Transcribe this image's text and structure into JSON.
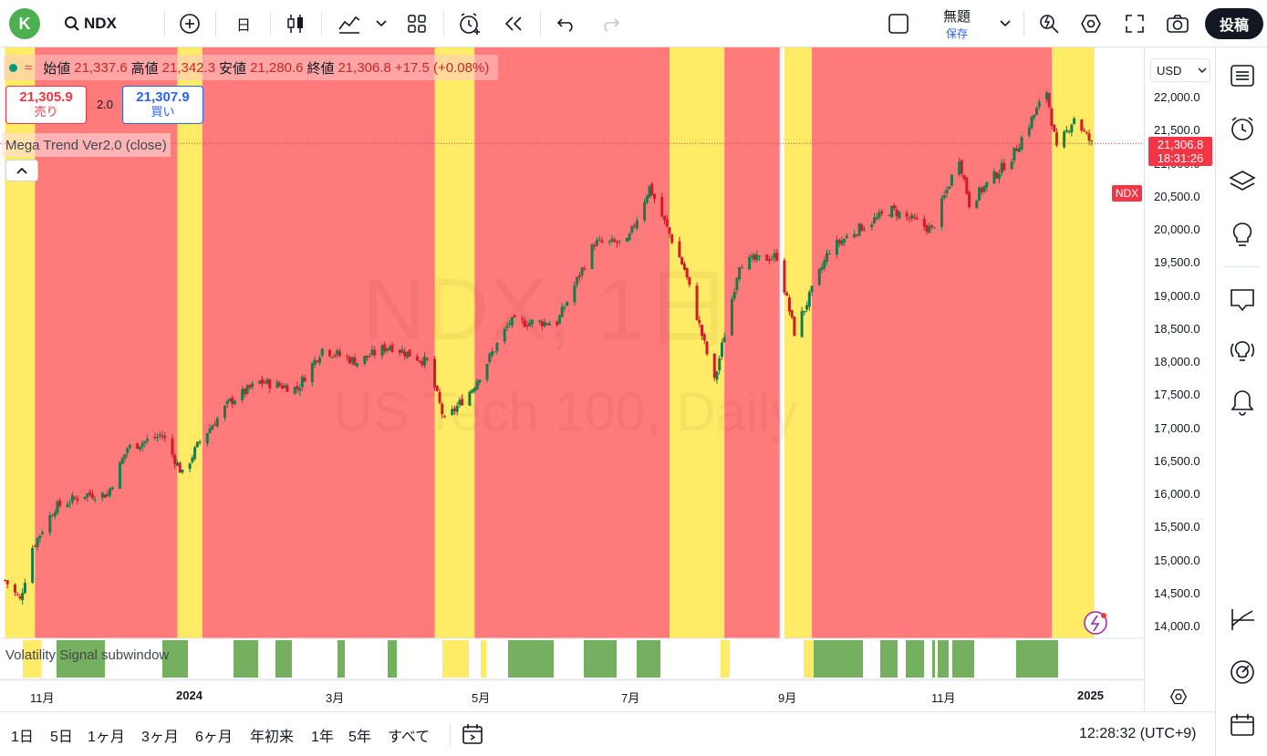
{
  "toolbar": {
    "avatar_letter": "K",
    "symbol": "NDX",
    "interval": "日",
    "save_title": "無題",
    "save_sub": "保存",
    "post": "投稿"
  },
  "legend": {
    "open_label": "始値",
    "open": "21,337.6",
    "high_label": "高値",
    "high": "21,342.3",
    "low_label": "安値",
    "low": "21,280.6",
    "close_label": "終値",
    "close": "21,306.8",
    "change": "+17.5 (+0.08%)"
  },
  "trade": {
    "sell_price": "21,305.9",
    "sell_label": "売り",
    "spread": "2.0",
    "buy_price": "21,307.9",
    "buy_label": "買い"
  },
  "indicator": "Mega Trend Ver2.0 (close)",
  "subwindow": "Volatility Signal subwindow",
  "watermark": {
    "line1": "NDX, 1日",
    "line2": "US Tech 100, Daily"
  },
  "price_scale": {
    "currency": "USD",
    "ticks": [
      "22,000.0",
      "21,500.0",
      "21,000.0",
      "20,500.0",
      "20,000.0",
      "19,500.0",
      "19,000.0",
      "18,500.0",
      "18,000.0",
      "17,500.0",
      "17,000.0",
      "16,500.0",
      "16,000.0",
      "15,500.0",
      "15,000.0",
      "14,500.0",
      "14,000.0"
    ],
    "last_price": "21,306.8",
    "countdown": "18:31:26",
    "symbol_tag": "NDX"
  },
  "time_scale": [
    "11月",
    "2024",
    "3月",
    "5月",
    "7月",
    "9月",
    "11月",
    "2025"
  ],
  "ranges": [
    "1日",
    "5日",
    "1ヶ月",
    "3ヶ月",
    "6ヶ月",
    "年初来",
    "1年",
    "5年",
    "すべて"
  ],
  "clock": "12:28:32 (UTC+9)",
  "colors": {
    "bull": "#26a69a",
    "bear": "#ef5350",
    "red_zone": "#ff7b7b",
    "yellow_zone": "#ffeb66",
    "signal": "#74b05f"
  },
  "chart_data": {
    "type": "candlestick",
    "symbol": "NDX",
    "ylim": [
      13900,
      22200
    ],
    "ytick_step": 500,
    "x_labels": [
      "11月",
      "2024",
      "3月",
      "5月",
      "7月",
      "9月",
      "11月",
      "2025"
    ],
    "close_approx": [
      [
        "2023-10-26",
        14700
      ],
      [
        "2023-11-01",
        14400
      ],
      [
        "2023-11-06",
        15200
      ],
      [
        "2023-11-15",
        15800
      ],
      [
        "2023-11-27",
        16000
      ],
      [
        "2023-12-06",
        16000
      ],
      [
        "2023-12-14",
        16700
      ],
      [
        "2023-12-28",
        16900
      ],
      [
        "2024-01-05",
        16300
      ],
      [
        "2024-01-12",
        16800
      ],
      [
        "2024-01-24",
        17400
      ],
      [
        "2024-02-05",
        17700
      ],
      [
        "2024-02-20",
        17600
      ],
      [
        "2024-03-01",
        18200
      ],
      [
        "2024-03-15",
        18000
      ],
      [
        "2024-03-28",
        18250
      ],
      [
        "2024-04-12",
        18000
      ],
      [
        "2024-04-19",
        17100
      ],
      [
        "2024-04-30",
        17600
      ],
      [
        "2024-05-15",
        18600
      ],
      [
        "2024-06-03",
        18600
      ],
      [
        "2024-06-18",
        19800
      ],
      [
        "2024-07-01",
        19800
      ],
      [
        "2024-07-10",
        20650
      ],
      [
        "2024-07-24",
        19400
      ],
      [
        "2024-08-05",
        17700
      ],
      [
        "2024-08-15",
        19500
      ],
      [
        "2024-08-30",
        19600
      ],
      [
        "2024-09-06",
        18450
      ],
      [
        "2024-09-20",
        19700
      ],
      [
        "2024-10-01",
        20000
      ],
      [
        "2024-10-15",
        20300
      ],
      [
        "2024-10-31",
        20000
      ],
      [
        "2024-11-11",
        21100
      ],
      [
        "2024-11-15",
        20400
      ],
      [
        "2024-12-02",
        21100
      ],
      [
        "2024-12-16",
        22100
      ],
      [
        "2024-12-20",
        21200
      ],
      [
        "2024-12-27",
        21700
      ],
      [
        "2025-01-03",
        21300
      ]
    ],
    "zones": [
      {
        "from": "2023-10-26",
        "to": "2023-11-06",
        "color": "yellow"
      },
      {
        "from": "2023-11-07",
        "to": "2024-01-02",
        "color": "red"
      },
      {
        "from": "2024-01-03",
        "to": "2024-01-12",
        "color": "yellow"
      },
      {
        "from": "2024-01-13",
        "to": "2024-04-14",
        "color": "red"
      },
      {
        "from": "2024-04-15",
        "to": "2024-04-30",
        "color": "yellow"
      },
      {
        "from": "2024-05-01",
        "to": "2024-07-17",
        "color": "red"
      },
      {
        "from": "2024-07-18",
        "to": "2024-08-08",
        "color": "yellow"
      },
      {
        "from": "2024-08-09",
        "to": "2024-08-30",
        "color": "red"
      },
      {
        "from": "2024-09-02",
        "to": "2024-09-12",
        "color": "yellow"
      },
      {
        "from": "2024-09-13",
        "to": "2024-12-17",
        "color": "red"
      },
      {
        "from": "2024-12-18",
        "to": "2025-01-03",
        "color": "yellow"
      }
    ]
  }
}
